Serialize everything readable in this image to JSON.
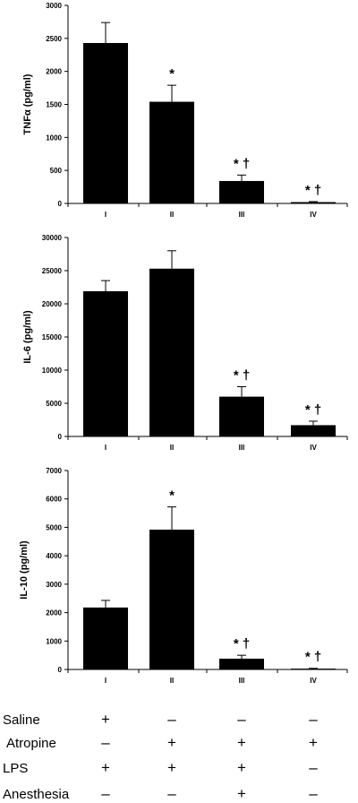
{
  "chart_data": [
    {
      "type": "bar",
      "ylabel": "TNFα (pg/ml)",
      "categories": [
        "I",
        "II",
        "III",
        "IV"
      ],
      "values": [
        2430,
        1540,
        340,
        20
      ],
      "errors": [
        310,
        250,
        90,
        8
      ],
      "annotations": [
        "",
        "*",
        "* †",
        "* †"
      ],
      "ylim": [
        0,
        3000
      ],
      "yticks": [
        0,
        500,
        1000,
        1500,
        2000,
        2500,
        3000
      ],
      "grid": false
    },
    {
      "type": "bar",
      "ylabel": "IL-6 (pg/ml)",
      "categories": [
        "I",
        "II",
        "III",
        "IV"
      ],
      "values": [
        21900,
        25300,
        6000,
        1700
      ],
      "errors": [
        1600,
        2700,
        1500,
        600
      ],
      "annotations": [
        "",
        "",
        "* †",
        "* †"
      ],
      "ylim": [
        0,
        30000
      ],
      "yticks": [
        0,
        5000,
        10000,
        15000,
        20000,
        25000,
        30000
      ],
      "grid": false
    },
    {
      "type": "bar",
      "ylabel": "IL-10 (pg/ml)",
      "categories": [
        "I",
        "II",
        "III",
        "IV"
      ],
      "values": [
        2180,
        4920,
        380,
        30
      ],
      "errors": [
        250,
        800,
        120,
        10
      ],
      "annotations": [
        "",
        "*",
        "* †",
        "* †"
      ],
      "ylim": [
        0,
        7000
      ],
      "yticks": [
        0,
        1000,
        2000,
        3000,
        4000,
        5000,
        6000,
        7000
      ],
      "grid": false
    }
  ],
  "treatments": [
    {
      "label": "Saline",
      "values": [
        "+",
        "–",
        "–",
        "–"
      ]
    },
    {
      "label": "Atropine",
      "values": [
        "–",
        "+",
        "+",
        "+"
      ]
    },
    {
      "label": "LPS",
      "values": [
        "+",
        "+",
        "+",
        "–"
      ]
    },
    {
      "label": "Anesthesia",
      "values": [
        "–",
        "–",
        "+",
        "–"
      ]
    }
  ]
}
